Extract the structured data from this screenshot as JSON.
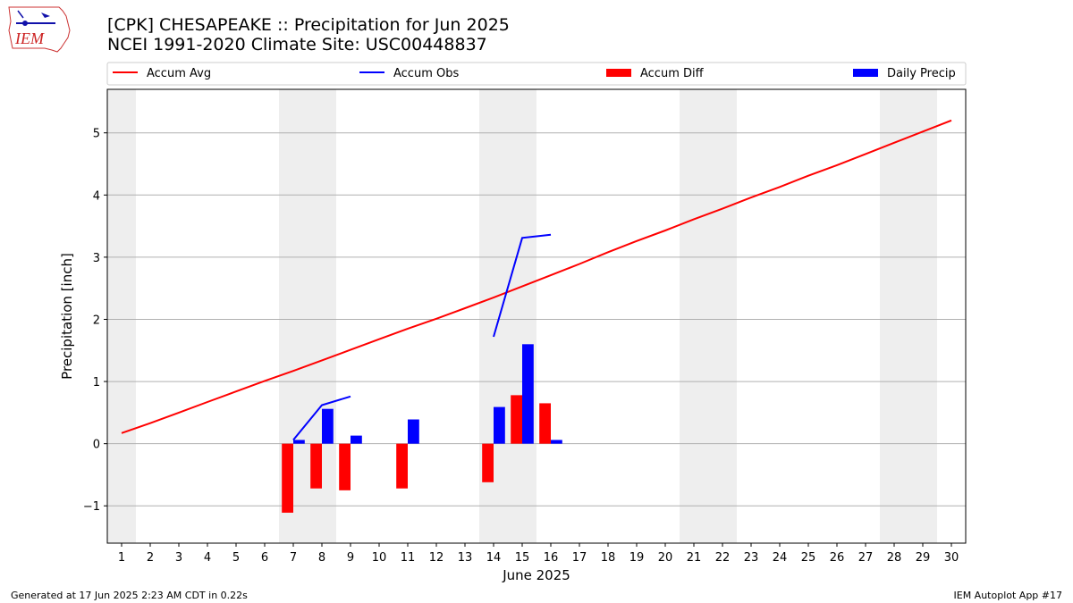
{
  "header": {
    "title_line1": "[CPK] CHESAPEAKE :: Precipitation for Jun 2025",
    "title_line2": "NCEI 1991-2020 Climate Site: USC00448837",
    "logo_text": "IEM"
  },
  "footer": {
    "left": "Generated at 17 Jun 2025 2:23 AM CDT in 0.22s",
    "right": "IEM Autoplot App #17"
  },
  "colors": {
    "accum_avg": "#ff0000",
    "accum_obs": "#0000ff",
    "accum_diff": "#ff0000",
    "daily_precip": "#0000ff",
    "weekend_shade": "#eeeeee",
    "grid": "#b0b0b0"
  },
  "chart_data": {
    "type": "bar",
    "xlabel": "June 2025",
    "ylabel": "Precipitation [inch]",
    "xlim": [
      0.5,
      30.5
    ],
    "ylim": [
      -1.6,
      5.7
    ],
    "yticks": [
      -1,
      0,
      1,
      2,
      3,
      4,
      5
    ],
    "ytick_labels": [
      "−1",
      "0",
      "1",
      "2",
      "3",
      "4",
      "5"
    ],
    "x_ticks": [
      1,
      2,
      3,
      4,
      5,
      6,
      7,
      8,
      9,
      10,
      11,
      12,
      13,
      14,
      15,
      16,
      17,
      18,
      19,
      20,
      21,
      22,
      23,
      24,
      25,
      26,
      27,
      28,
      29,
      30
    ],
    "grid": "horizontal",
    "legend_position": "top",
    "weekend_shading": [
      [
        0.5,
        1.5
      ],
      [
        6.5,
        8.5
      ],
      [
        13.5,
        15.5
      ],
      [
        20.5,
        22.5
      ],
      [
        27.5,
        29.5
      ]
    ],
    "legend": [
      {
        "name": "Accum Avg",
        "kind": "line"
      },
      {
        "name": "Accum Obs",
        "kind": "line"
      },
      {
        "name": "Accum Diff",
        "kind": "bar"
      },
      {
        "name": "Daily Precip",
        "kind": "bar"
      }
    ],
    "series": [
      {
        "name": "Accum Avg",
        "kind": "line",
        "x": [
          1,
          2,
          3,
          4,
          5,
          6,
          7,
          8,
          9,
          10,
          11,
          12,
          13,
          14,
          15,
          16,
          17,
          18,
          19,
          20,
          21,
          22,
          23,
          24,
          25,
          26,
          27,
          28,
          29,
          30
        ],
        "values": [
          0.17,
          0.33,
          0.5,
          0.67,
          0.84,
          1.01,
          1.17,
          1.34,
          1.51,
          1.68,
          1.85,
          2.01,
          2.18,
          2.35,
          2.53,
          2.71,
          2.89,
          3.08,
          3.26,
          3.43,
          3.61,
          3.78,
          3.96,
          4.13,
          4.31,
          4.48,
          4.66,
          4.84,
          5.02,
          5.2
        ]
      },
      {
        "name": "Accum Obs",
        "kind": "line",
        "x": [
          7,
          8,
          9,
          null,
          14,
          15,
          16
        ],
        "values": [
          0.06,
          0.62,
          0.76,
          null,
          1.72,
          3.31,
          3.36
        ]
      },
      {
        "name": "Accum Diff",
        "kind": "bar",
        "x": [
          7,
          8,
          9,
          11,
          14,
          15,
          16
        ],
        "values": [
          -1.11,
          -0.72,
          -0.75,
          -0.72,
          -0.62,
          0.78,
          0.65
        ]
      },
      {
        "name": "Daily Precip",
        "kind": "bar",
        "x": [
          7,
          8,
          9,
          11,
          14,
          15,
          16
        ],
        "values": [
          0.06,
          0.56,
          0.13,
          0.39,
          0.59,
          1.6,
          0.06
        ]
      }
    ]
  }
}
